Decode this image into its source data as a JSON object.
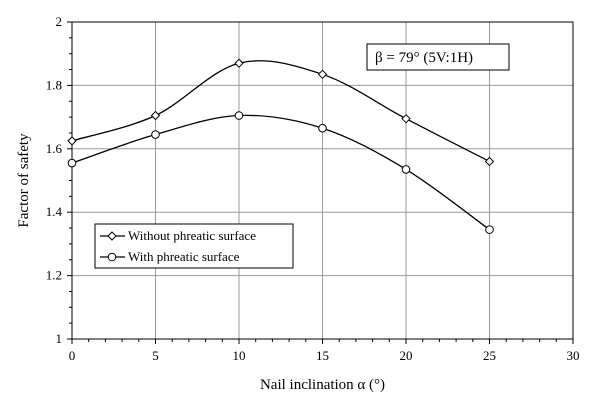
{
  "chart_data": {
    "type": "line",
    "title": "",
    "xlabel": "Nail inclination α (°)",
    "ylabel": "Factor of safety",
    "xlim": [
      0,
      30
    ],
    "ylim": [
      1,
      2
    ],
    "x_ticks": [
      "0",
      "5",
      "10",
      "15",
      "20",
      "25",
      "30"
    ],
    "y_ticks": [
      "1",
      "1.2",
      "1.4",
      "1.6",
      "1.8",
      "2"
    ],
    "grid": true,
    "legend_position": "bottom-left",
    "annotation": "β = 79° (5V:1H)",
    "x": [
      0,
      5,
      10,
      15,
      20,
      25
    ],
    "series": [
      {
        "name": "Without phreatic surface",
        "marker": "diamond",
        "values": [
          1.625,
          1.705,
          1.87,
          1.835,
          1.695,
          1.56
        ]
      },
      {
        "name": "With phreatic surface",
        "marker": "circle",
        "values": [
          1.555,
          1.645,
          1.705,
          1.665,
          1.535,
          1.345
        ]
      }
    ],
    "colors": {
      "line": "#000000",
      "grid": "#999999",
      "marker_fill": "#ffffff"
    }
  }
}
